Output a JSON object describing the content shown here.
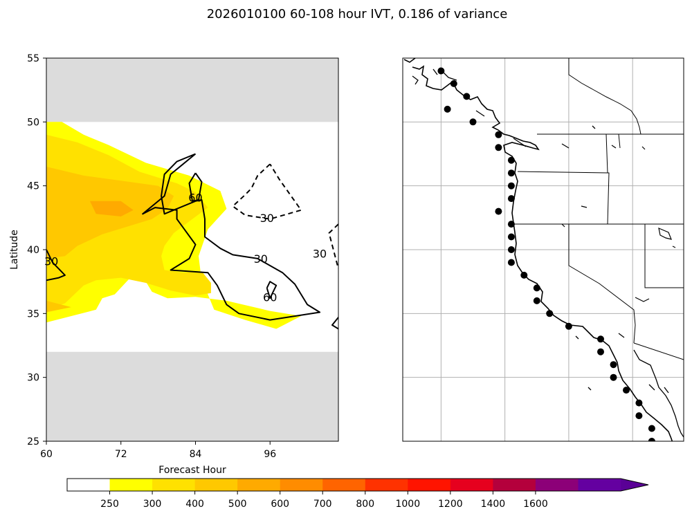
{
  "figure": {
    "title": "2026010100 60-108 hour IVT, 0.186 of variance"
  },
  "chart_data": [
    {
      "type": "contour",
      "panel": "left",
      "xlabel": "Forecast Hour",
      "ylabel": "Latitude",
      "xlim": [
        60,
        107
      ],
      "ylim": [
        25,
        55
      ],
      "x_ticks": [
        60,
        72,
        84,
        96
      ],
      "y_ticks": [
        25,
        30,
        35,
        40,
        45,
        50,
        55
      ],
      "no_data_color": "#dcdcdc",
      "no_data_ranges": [
        [
          25,
          32
        ],
        [
          50,
          55
        ]
      ],
      "fill_levels": [
        {
          "min": 250,
          "max": 300,
          "color": "#ffff00",
          "polygon": [
            [
              60,
              50
            ],
            [
              62.5,
              50
            ],
            [
              66,
              49
            ],
            [
              70,
              48.2
            ],
            [
              76,
              46.8
            ],
            [
              83,
              45.8
            ],
            [
              88,
              44.6
            ],
            [
              89,
              43.2
            ],
            [
              86,
              41.6
            ],
            [
              84.5,
              39.5
            ],
            [
              85,
              37.5
            ],
            [
              86,
              36.5
            ],
            [
              87,
              35.3
            ],
            [
              92,
              34.5
            ],
            [
              97,
              33.8
            ],
            [
              101,
              34.8
            ],
            [
              96,
              35.2
            ],
            [
              89,
              36
            ],
            [
              84,
              36.3
            ],
            [
              79.5,
              36.2
            ],
            [
              77,
              36.7
            ],
            [
              76,
              37.5
            ],
            [
              73.5,
              37.8
            ],
            [
              71,
              36.5
            ],
            [
              69,
              36.2
            ],
            [
              68,
              35.3
            ],
            [
              60,
              34.3
            ]
          ]
        },
        {
          "min": 300,
          "max": 400,
          "color": "#ffe100",
          "polygon": [
            [
              60,
              49
            ],
            [
              65,
              48.4
            ],
            [
              70,
              47.4
            ],
            [
              75,
              46.1
            ],
            [
              81,
              45.2
            ],
            [
              84,
              44.5
            ],
            [
              86,
              43.3
            ],
            [
              83.5,
              42.4
            ],
            [
              80.5,
              41.3
            ],
            [
              79,
              40.3
            ],
            [
              78.5,
              39.5
            ],
            [
              79,
              38.4
            ],
            [
              82,
              38.2
            ],
            [
              85,
              38.3
            ],
            [
              86.5,
              37.4
            ],
            [
              86.5,
              36.6
            ],
            [
              84,
              36.4
            ],
            [
              80,
              36.8
            ],
            [
              76,
              37.4
            ],
            [
              72,
              37.8
            ],
            [
              68,
              37.6
            ],
            [
              66,
              37.2
            ],
            [
              63,
              35.8
            ],
            [
              60,
              35.3
            ]
          ]
        },
        {
          "min": 400,
          "max": 500,
          "color": "#ffc800",
          "polygon": [
            [
              60,
              46.5
            ],
            [
              66,
              45.8
            ],
            [
              72,
              45.4
            ],
            [
              78,
              45
            ],
            [
              80.5,
              44.2
            ],
            [
              79.5,
              43.2
            ],
            [
              77,
              42.4
            ],
            [
              73,
              41.8
            ],
            [
              69,
              41.2
            ],
            [
              65,
              40.3
            ],
            [
              63,
              39.5
            ],
            [
              60,
              39.3
            ]
          ]
        },
        {
          "min": 400,
          "max": 500,
          "color": "#ffc800",
          "polygon": [
            [
              60,
              36
            ],
            [
              64,
              35.5
            ],
            [
              60,
              35.1
            ]
          ]
        },
        {
          "min": 500,
          "max": 600,
          "color": "#ffaa00",
          "polygon": [
            [
              67,
              43.8
            ],
            [
              72,
              43.8
            ],
            [
              74,
              43.1
            ],
            [
              72,
              42.6
            ],
            [
              68,
              42.8
            ]
          ]
        }
      ],
      "contours": [
        {
          "label": "30",
          "style": "solid",
          "points": [
            [
              84,
              47.5
            ],
            [
              81,
              46.9
            ],
            [
              79,
              45.9
            ],
            [
              78.5,
              44.2
            ],
            [
              79,
              42.8
            ],
            [
              84,
              43.8
            ],
            [
              85,
              43.9
            ],
            [
              85.5,
              42.4
            ],
            [
              85.5,
              41
            ],
            [
              88,
              40.1
            ],
            [
              90,
              39.6
            ],
            [
              94,
              39.3
            ],
            [
              98,
              38.2
            ],
            [
              100,
              37.3
            ],
            [
              101,
              36.5
            ],
            [
              102,
              35.7
            ],
            [
              104,
              35.1
            ],
            [
              96,
              34.5
            ],
            [
              91,
              35
            ],
            [
              89,
              35.7
            ],
            [
              87.5,
              37.2
            ],
            [
              86,
              38.2
            ],
            [
              80,
              38.4
            ],
            [
              83,
              39.3
            ],
            [
              84,
              40.4
            ],
            [
              81,
              42.4
            ],
            [
              81,
              43.1
            ],
            [
              77.5,
              43.3
            ],
            [
              75.5,
              42.8
            ],
            [
              79,
              44.2
            ],
            [
              80,
              45.9
            ],
            [
              82,
              46.7
            ],
            [
              84,
              47.5
            ]
          ]
        },
        {
          "label": "30",
          "style": "solid",
          "points": [
            [
              60,
              37.6
            ],
            [
              62,
              37.8
            ],
            [
              63,
              38
            ],
            [
              61,
              39
            ],
            [
              60,
              40
            ]
          ]
        },
        {
          "label": "30",
          "style": "solid",
          "points": [
            [
              107,
              33.8
            ],
            [
              106,
              34.1
            ],
            [
              107,
              34.7
            ]
          ]
        },
        {
          "label": "30",
          "style": "dashed",
          "points": [
            [
              96,
              46.7
            ],
            [
              94,
              45.8
            ],
            [
              93,
              44.8
            ],
            [
              92,
              44.3
            ],
            [
              90,
              43.4
            ],
            [
              92,
              42.7
            ],
            [
              96,
              42.4
            ],
            [
              101,
              43.1
            ],
            [
              97.5,
              45.5
            ],
            [
              96,
              46.7
            ]
          ]
        },
        {
          "label": "30",
          "style": "dashed",
          "points": [
            [
              107,
              42
            ],
            [
              105.5,
              41.3
            ],
            [
              107,
              38.5
            ]
          ]
        },
        {
          "label": "60",
          "style": "solid",
          "points": [
            [
              84,
              46
            ],
            [
              85,
              45.3
            ],
            [
              84.5,
              43.9
            ],
            [
              83.5,
              43.8
            ],
            [
              83,
              45.2
            ],
            [
              84,
              46
            ]
          ]
        },
        {
          "label": "60",
          "style": "solid",
          "points": [
            [
              95.5,
              37
            ],
            [
              96,
              37.5
            ],
            [
              97,
              37.2
            ],
            [
              96,
              36.2
            ],
            [
              95.5,
              37
            ]
          ]
        }
      ],
      "contour_labels": [
        {
          "text": "60",
          "x": 84,
          "y": 44.1
        },
        {
          "text": "30",
          "x": 95.5,
          "y": 42.5
        },
        {
          "text": "30",
          "x": 94.5,
          "y": 39.3
        },
        {
          "text": "60",
          "x": 96,
          "y": 36.3
        },
        {
          "text": "30",
          "x": 104,
          "y": 39.7
        },
        {
          "text": "30",
          "x": 60.8,
          "y": 39.1
        }
      ]
    },
    {
      "type": "map-scatter",
      "panel": "right",
      "lon_range": [
        -128,
        -106
      ],
      "lat_range": [
        25,
        55
      ],
      "gridlines_lon": [
        -125,
        -120,
        -115,
        -110
      ],
      "gridlines_lat": [
        30,
        35,
        40,
        45,
        50
      ],
      "grid": true,
      "points": [
        [
          -125,
          54
        ],
        [
          -124,
          53
        ],
        [
          -123,
          52
        ],
        [
          -124.5,
          51
        ],
        [
          -122.5,
          50
        ],
        [
          -120.5,
          49
        ],
        [
          -120.5,
          48
        ],
        [
          -119.5,
          47
        ],
        [
          -119.5,
          46
        ],
        [
          -119.5,
          45
        ],
        [
          -119.5,
          44
        ],
        [
          -120.5,
          43
        ],
        [
          -119.5,
          42
        ],
        [
          -119.5,
          41
        ],
        [
          -119.5,
          40
        ],
        [
          -119.5,
          39
        ],
        [
          -118.5,
          38
        ],
        [
          -117.5,
          37
        ],
        [
          -117.5,
          36
        ],
        [
          -116.5,
          35
        ],
        [
          -115,
          34
        ],
        [
          -112.5,
          33
        ],
        [
          -112.5,
          32
        ],
        [
          -111.5,
          31
        ],
        [
          -111.5,
          30
        ],
        [
          -110.5,
          29
        ],
        [
          -109.5,
          28
        ],
        [
          -109.5,
          27
        ],
        [
          -108.5,
          26
        ],
        [
          -108.5,
          25
        ]
      ]
    },
    {
      "type": "colorbar",
      "boundaries": [
        0,
        250,
        300,
        400,
        500,
        600,
        700,
        800,
        1000,
        1200,
        1400,
        1600,
        1800
      ],
      "tick_labels": [
        "250",
        "300",
        "400",
        "500",
        "600",
        "700",
        "800",
        "1000",
        "1200",
        "1400",
        "1600"
      ],
      "colors": [
        "#ffffff",
        "#ffff00",
        "#ffe100",
        "#ffc800",
        "#ffaa00",
        "#ff8c00",
        "#ff6400",
        "#ff3200",
        "#ff1400",
        "#e6001e",
        "#b4003c",
        "#8c0078",
        "#6400a0"
      ],
      "extend": "max",
      "extend_color": "#5a0096"
    }
  ]
}
